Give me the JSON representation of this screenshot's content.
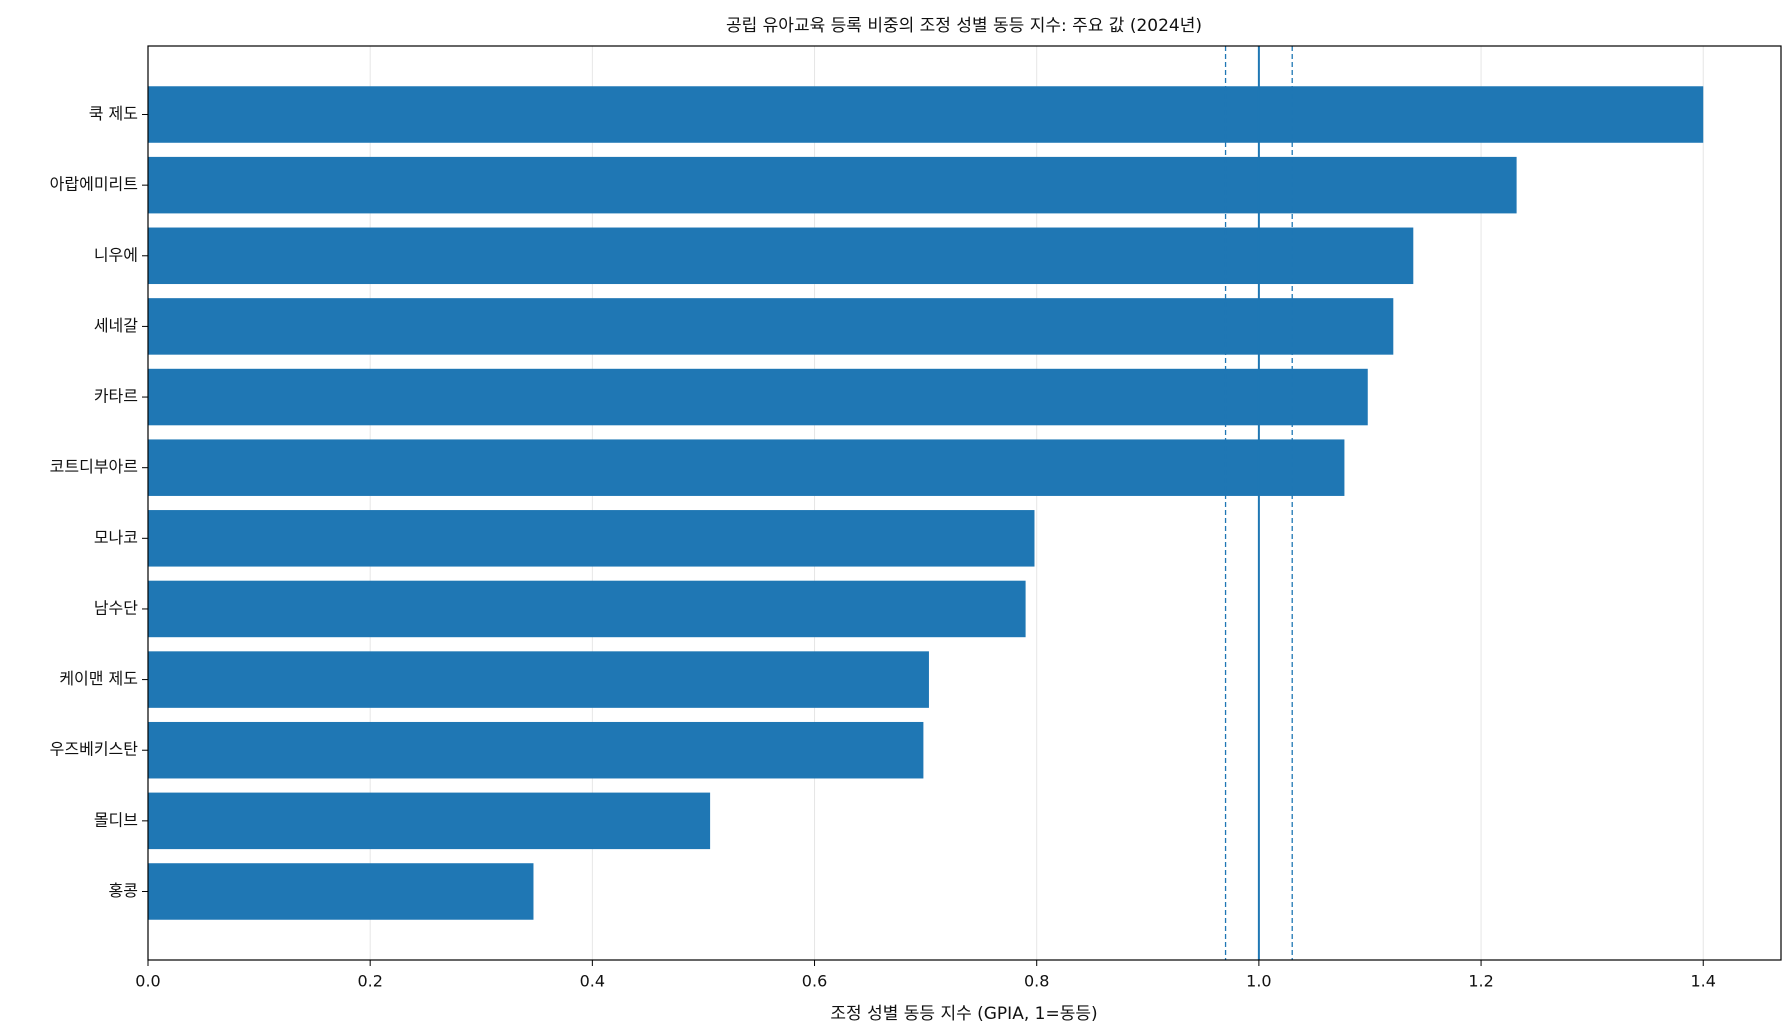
{
  "chart_data": {
    "type": "barh",
    "title": "공립 유아교육 등록 비중의 조정 성별 동등 지수: 주요 값 (2024년)",
    "x_label": "조정 성별 동등 지수 (GPIA, 1=동등)",
    "categories": [
      "쿡 제도",
      "아랍에미리트",
      "니우에",
      "세네갈",
      "카타르",
      "코트디부아르",
      "모나코",
      "남수단",
      "케이맨 제도",
      "우즈베키스탄",
      "몰디브",
      "홍콩"
    ],
    "values": [
      1.4,
      1.232,
      1.139,
      1.121,
      1.098,
      1.077,
      0.798,
      0.79,
      0.703,
      0.698,
      0.506,
      0.347
    ],
    "color": "#1f77b4",
    "xlim": [
      0,
      1.47
    ],
    "xticks": [
      {
        "value": 0,
        "label": "0.0"
      },
      0.2,
      0.4,
      0.6,
      0.8,
      {
        "value": 1,
        "label": "1.0"
      },
      1.2,
      1.4
    ],
    "grid": true,
    "reference_lines": [
      {
        "value": 1,
        "style": "solid"
      },
      {
        "value": 0.97,
        "style": "dashed"
      },
      {
        "value": 1.03,
        "style": "dashed"
      }
    ]
  }
}
